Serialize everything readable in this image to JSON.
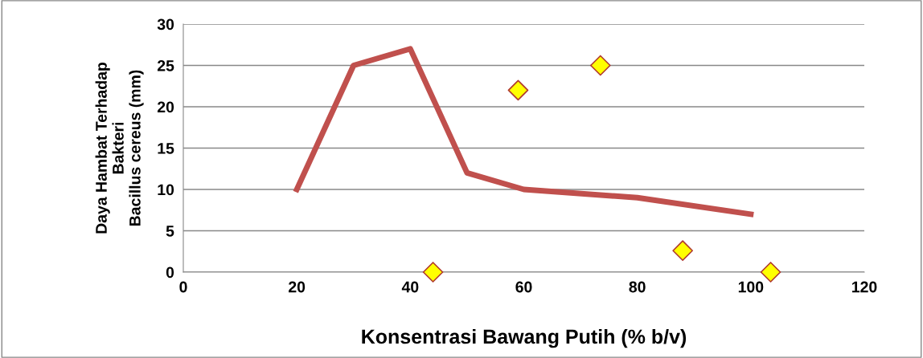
{
  "chart_data": {
    "type": "line",
    "xlabel": "Konsentrasi Bawang Putih (% b/v)",
    "ylabel": "Daya Hambat Terhadap\nBakteri\nBacillus cereus (mm)",
    "series": [
      {
        "color": "#c0504d",
        "x": [
          20,
          30,
          40,
          50,
          60,
          80,
          100
        ],
        "values": [
          10,
          25,
          27,
          12,
          10,
          9,
          7
        ],
        "marker": "none"
      },
      {
        "type": "scatter",
        "color": "#ffff00",
        "x": [
          44,
          59,
          73.5,
          88,
          103.5
        ],
        "values": [
          0,
          22,
          25,
          2.6,
          0
        ],
        "marker": "diamond"
      }
    ],
    "xlim": [
      0,
      120
    ],
    "xticks": [
      0,
      20,
      40,
      60,
      80,
      100,
      120
    ],
    "ylim": [
      0,
      30
    ],
    "yticks": [
      0,
      5,
      10,
      15,
      20,
      25,
      30
    ],
    "grid": "y",
    "legend": false
  }
}
